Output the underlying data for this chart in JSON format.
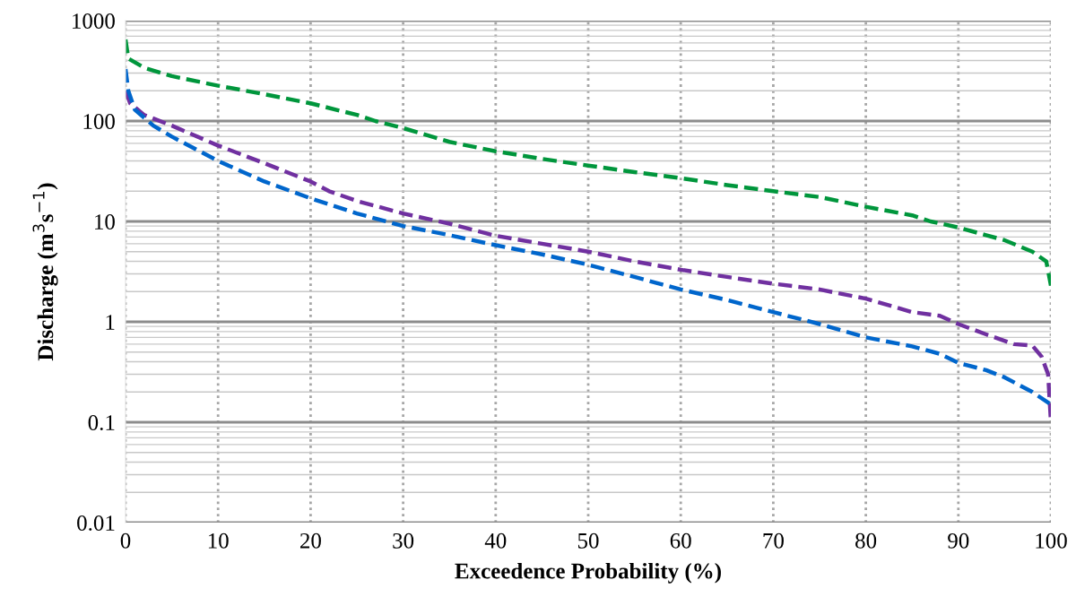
{
  "chart_data": {
    "type": "line",
    "xlabel": "Exceedence Probability (%)",
    "ylabel": "Discharge (m$^{3}$s$^{−1}$)",
    "log": "y",
    "grid": true,
    "line_style": "dashed",
    "marker": "none",
    "xlim": [
      0,
      100
    ],
    "xticks": [
      0,
      10,
      20,
      30,
      40,
      50,
      60,
      70,
      80,
      90,
      100
    ],
    "ylim": [
      0.01,
      1000
    ],
    "yticks": [
      0.01,
      0.1,
      1,
      10,
      100,
      1000
    ],
    "series": [
      {
        "color": "#00963c",
        "x": [
          0,
          0.3,
          2,
          5,
          10,
          15,
          20,
          25,
          27,
          30,
          35,
          40,
          45,
          50,
          55,
          60,
          65,
          70,
          75,
          80,
          85,
          87,
          90,
          93,
          95,
          98,
          99.5,
          100
        ],
        "values": [
          650,
          420,
          340,
          280,
          225,
          185,
          150,
          115,
          100,
          85,
          62,
          50,
          42,
          36,
          31,
          27,
          23,
          20,
          17.5,
          14,
          11.5,
          10,
          8.7,
          7.3,
          6.5,
          5,
          4,
          2.3
        ]
      },
      {
        "color": "#7030a0",
        "x": [
          0,
          0.5,
          2,
          5,
          10,
          15,
          20,
          22,
          25,
          30,
          35,
          40,
          45,
          50,
          55,
          60,
          65,
          70,
          75,
          80,
          85,
          88,
          90,
          93,
          96,
          98,
          99,
          99.7,
          100
        ],
        "values": [
          200,
          150,
          115,
          90,
          57,
          38,
          25,
          20,
          16,
          12,
          9.5,
          7.2,
          6,
          5,
          4,
          3.3,
          2.8,
          2.4,
          2.1,
          1.7,
          1.25,
          1.15,
          0.95,
          0.75,
          0.6,
          0.58,
          0.45,
          0.3,
          0.1
        ]
      },
      {
        "color": "#0066cc",
        "x": [
          0,
          0.3,
          1,
          3,
          5,
          10,
          15,
          20,
          25,
          30,
          35,
          40,
          45,
          50,
          55,
          60,
          65,
          70,
          75,
          80,
          85,
          88,
          90,
          93,
          95,
          98,
          100
        ],
        "values": [
          330,
          200,
          130,
          90,
          70,
          40,
          25,
          17,
          12,
          9,
          7.3,
          5.8,
          4.7,
          3.7,
          2.8,
          2.1,
          1.65,
          1.25,
          0.95,
          0.7,
          0.57,
          0.48,
          0.39,
          0.33,
          0.28,
          0.2,
          0.15
        ]
      }
    ]
  }
}
